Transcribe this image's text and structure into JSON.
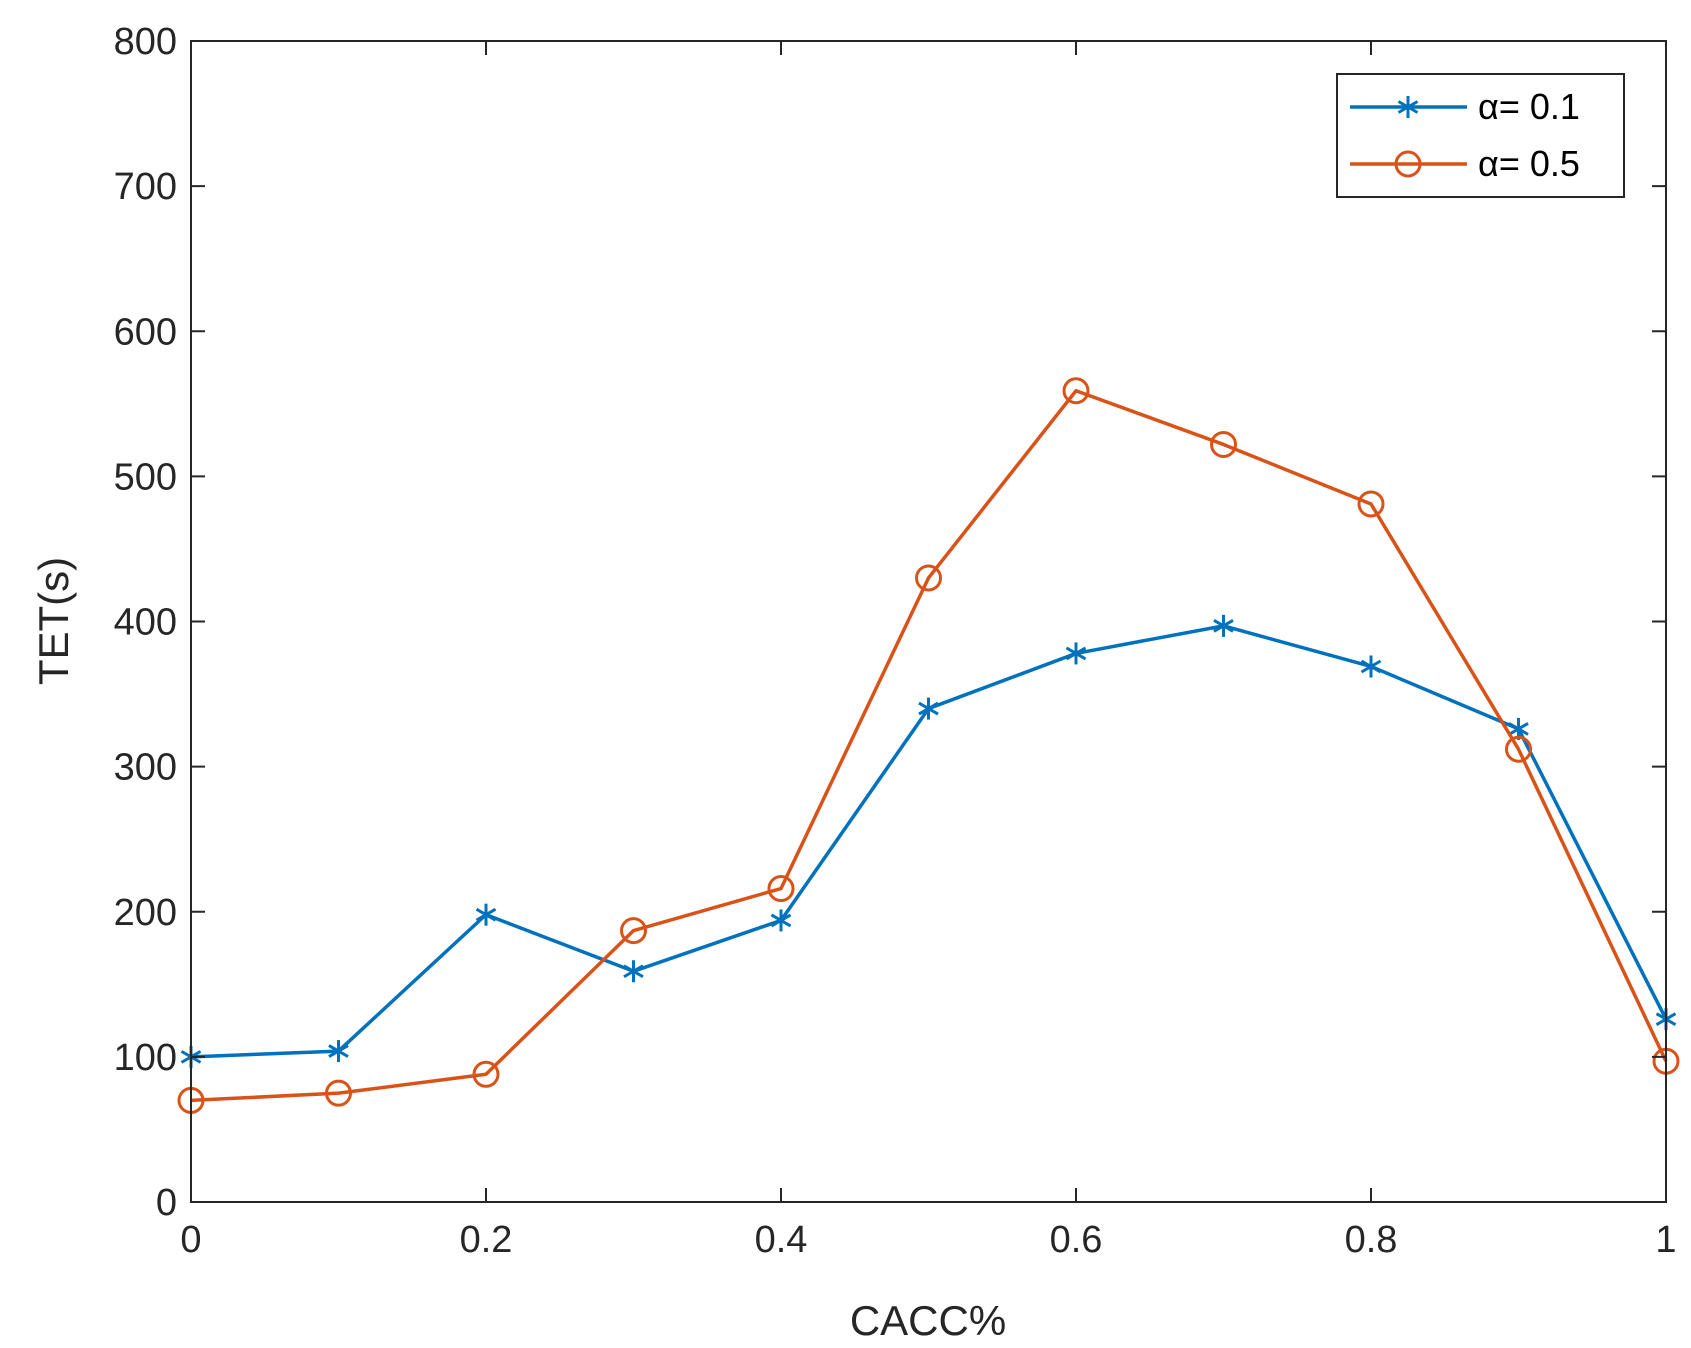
{
  "chart_data": {
    "type": "line",
    "title": "",
    "xlabel": "CACC%",
    "ylabel": "TET(s)",
    "xlim": [
      0,
      1
    ],
    "ylim": [
      0,
      800
    ],
    "xticks": [
      0,
      0.2,
      0.4,
      0.6,
      0.8,
      1
    ],
    "xtick_labels": [
      "0",
      "0.2",
      "0.4",
      "0.6",
      "0.8",
      "1"
    ],
    "yticks": [
      0,
      100,
      200,
      300,
      400,
      500,
      600,
      700,
      800
    ],
    "ytick_labels": [
      "0",
      "100",
      "200",
      "300",
      "400",
      "500",
      "600",
      "700",
      "800"
    ],
    "grid": false,
    "legend_position": "top-right",
    "x": [
      0,
      0.1,
      0.2,
      0.3,
      0.4,
      0.5,
      0.6,
      0.7,
      0.8,
      0.9,
      1.0
    ],
    "series": [
      {
        "name": "α= 0.1",
        "marker": "asterisk",
        "color": "#0072BD",
        "values": [
          100,
          104,
          198,
          159,
          194,
          340,
          378,
          397,
          369,
          326,
          126
        ]
      },
      {
        "name": "α= 0.5",
        "marker": "circle",
        "color": "#D95319",
        "values": [
          70,
          75,
          88,
          187,
          216,
          430,
          559,
          522,
          481,
          312,
          97
        ]
      }
    ]
  }
}
